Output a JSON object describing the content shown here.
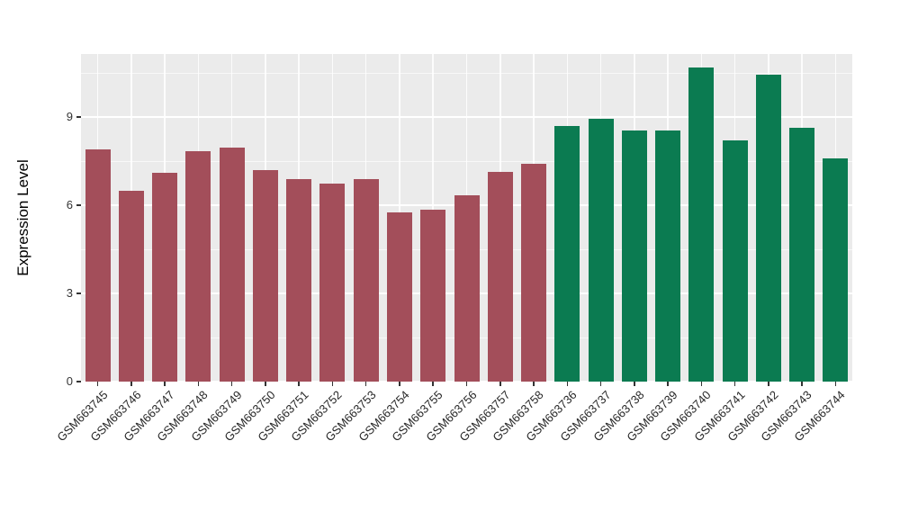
{
  "figure": {
    "background": "#ffffff",
    "panel_background": "#ebebeb",
    "grid_color": "#ffffff",
    "tick_color": "#333333"
  },
  "chart_data": {
    "type": "bar",
    "title": "",
    "xlabel": "",
    "ylabel": "Expression Level",
    "ylim": [
      0,
      11.15
    ],
    "yticks": [
      0,
      3,
      6,
      9
    ],
    "yticks_minor": [
      1.5,
      4.5,
      7.5,
      10.5
    ],
    "grid": true,
    "legend_position": "none",
    "categories": [
      "GSM663745",
      "GSM663746",
      "GSM663747",
      "GSM663748",
      "GSM663749",
      "GSM663750",
      "GSM663751",
      "GSM663752",
      "GSM663753",
      "GSM663754",
      "GSM663755",
      "GSM663756",
      "GSM663757",
      "GSM663758",
      "GSM663736",
      "GSM663737",
      "GSM663738",
      "GSM663739",
      "GSM663740",
      "GSM663741",
      "GSM663742",
      "GSM663743",
      "GSM663744"
    ],
    "values": [
      7.9,
      6.5,
      7.1,
      7.85,
      7.95,
      7.2,
      6.9,
      6.75,
      6.9,
      5.75,
      5.85,
      6.35,
      7.15,
      7.4,
      8.7,
      8.95,
      8.55,
      8.55,
      10.7,
      8.2,
      10.45,
      8.65,
      7.6
    ],
    "bar_group": [
      "maroon",
      "maroon",
      "maroon",
      "maroon",
      "maroon",
      "maroon",
      "maroon",
      "maroon",
      "maroon",
      "maroon",
      "maroon",
      "maroon",
      "maroon",
      "maroon",
      "green",
      "green",
      "green",
      "green",
      "green",
      "green",
      "green",
      "green",
      "green"
    ],
    "group_colors": {
      "maroon": "#a34e5a",
      "green": "#0b7b51"
    }
  }
}
